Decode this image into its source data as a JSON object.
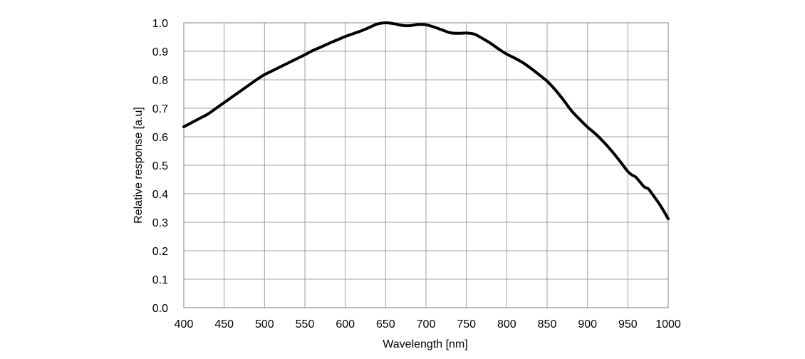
{
  "chart_data": {
    "type": "line",
    "title": "",
    "xlabel": "Wavelength [nm]",
    "ylabel": "Relative response [a.u]",
    "xlim": [
      400,
      1000
    ],
    "ylim": [
      0.0,
      1.0
    ],
    "xticks": [
      "400",
      "450",
      "500",
      "550",
      "600",
      "650",
      "700",
      "750",
      "800",
      "850",
      "900",
      "950",
      "1000"
    ],
    "yticks": [
      "0.0",
      "0.1",
      "0.2",
      "0.3",
      "0.4",
      "0.5",
      "0.6",
      "0.7",
      "0.8",
      "0.9",
      "1.0"
    ],
    "grid": true,
    "legend": "none",
    "colors": {
      "line": "#000000",
      "grid": "#a0a0a0",
      "frame": "#808080"
    },
    "series": [
      {
        "x": [
          400,
          410,
          420,
          430,
          440,
          450,
          460,
          470,
          480,
          490,
          500,
          510,
          520,
          530,
          540,
          550,
          560,
          570,
          580,
          590,
          600,
          610,
          620,
          630,
          640,
          650,
          660,
          670,
          680,
          690,
          700,
          710,
          720,
          730,
          740,
          750,
          760,
          770,
          780,
          790,
          800,
          810,
          820,
          830,
          840,
          850,
          860,
          870,
          880,
          890,
          900,
          910,
          920,
          930,
          940,
          950,
          955,
          960,
          970,
          975,
          980,
          990,
          1000
        ],
        "y": [
          0.635,
          0.65,
          0.665,
          0.68,
          0.7,
          0.72,
          0.74,
          0.76,
          0.78,
          0.8,
          0.818,
          0.832,
          0.846,
          0.86,
          0.874,
          0.888,
          0.903,
          0.915,
          0.928,
          0.94,
          0.952,
          0.962,
          0.972,
          0.984,
          0.996,
          1.0,
          0.997,
          0.991,
          0.99,
          0.994,
          0.993,
          0.985,
          0.975,
          0.965,
          0.963,
          0.964,
          0.96,
          0.945,
          0.928,
          0.908,
          0.89,
          0.876,
          0.86,
          0.84,
          0.818,
          0.795,
          0.765,
          0.73,
          0.692,
          0.662,
          0.634,
          0.61,
          0.582,
          0.55,
          0.515,
          0.478,
          0.466,
          0.458,
          0.425,
          0.418,
          0.4,
          0.36,
          0.312
        ]
      }
    ]
  }
}
